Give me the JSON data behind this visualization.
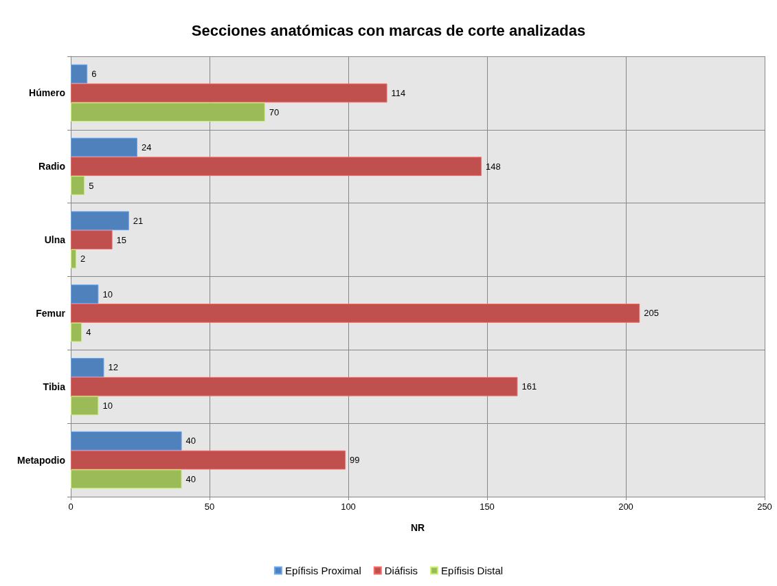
{
  "chart_data": {
    "type": "bar",
    "orientation": "horizontal",
    "title": "Secciones anatómicas con marcas de corte analizadas",
    "xlabel": "NR",
    "categories": [
      "Húmero",
      "Radio",
      "Ulna",
      "Femur",
      "Tibia",
      "Metapodio"
    ],
    "series": [
      {
        "name": "Epífisis Proximal",
        "color": "#4f81bd",
        "values": [
          6,
          24,
          21,
          10,
          12,
          40
        ]
      },
      {
        "name": "Diáfisis",
        "color": "#c0504d",
        "values": [
          114,
          148,
          15,
          205,
          161,
          99
        ]
      },
      {
        "name": "Epífisis Distal",
        "color": "#9bbb59",
        "values": [
          70,
          5,
          2,
          4,
          10,
          40
        ]
      }
    ],
    "xlim": [
      0,
      250
    ],
    "xticks": [
      0,
      50,
      100,
      150,
      200,
      250
    ],
    "grid": true,
    "legend": "bottom",
    "data_labels": true
  }
}
